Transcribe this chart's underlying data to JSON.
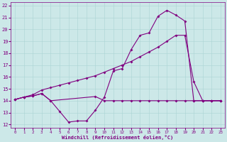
{
  "xlabel": "Windchill (Refroidissement éolien,°C)",
  "bg_color": "#cce8e8",
  "line_color": "#800080",
  "ylim": [
    12,
    22
  ],
  "xlim": [
    0,
    23
  ],
  "yticks": [
    12,
    13,
    14,
    15,
    16,
    17,
    18,
    19,
    20,
    21,
    22
  ],
  "xticks": [
    0,
    1,
    2,
    3,
    4,
    5,
    6,
    7,
    8,
    9,
    10,
    11,
    12,
    13,
    14,
    15,
    16,
    17,
    18,
    19,
    20,
    21,
    22,
    23
  ],
  "line1_x": [
    0,
    1,
    2,
    3,
    4,
    5,
    6,
    7,
    8,
    9,
    10,
    11,
    12,
    13,
    14,
    15,
    16,
    17,
    18,
    19,
    20,
    21,
    22,
    23
  ],
  "line1_y": [
    14.1,
    14.3,
    14.4,
    14.6,
    14.0,
    13.1,
    12.2,
    12.3,
    12.3,
    13.2,
    14.3,
    16.5,
    16.7,
    18.3,
    19.5,
    19.7,
    21.1,
    21.6,
    21.2,
    20.7,
    14.0,
    14.0,
    14.0,
    14.0
  ],
  "line2_x": [
    0,
    1,
    2,
    3,
    4,
    9,
    10,
    11,
    12,
    13,
    14,
    15,
    16,
    17,
    18,
    19,
    20,
    21,
    22,
    23
  ],
  "line2_y": [
    14.1,
    14.3,
    14.4,
    14.6,
    14.0,
    14.35,
    14.0,
    14.0,
    14.0,
    14.0,
    14.0,
    14.0,
    14.0,
    14.0,
    14.0,
    14.0,
    14.0,
    14.0,
    14.0,
    14.0
  ],
  "line3_x": [
    0,
    1,
    2,
    3,
    4,
    5,
    6,
    7,
    8,
    9,
    10,
    11,
    12,
    13,
    14,
    15,
    16,
    17,
    18,
    19,
    20,
    21,
    22,
    23
  ],
  "line3_y": [
    14.1,
    14.3,
    14.5,
    14.9,
    15.1,
    15.3,
    15.5,
    15.7,
    15.9,
    16.1,
    16.4,
    16.7,
    17.0,
    17.3,
    17.7,
    18.1,
    18.5,
    19.0,
    19.5,
    19.5,
    15.6,
    14.0,
    14.0,
    14.0
  ]
}
